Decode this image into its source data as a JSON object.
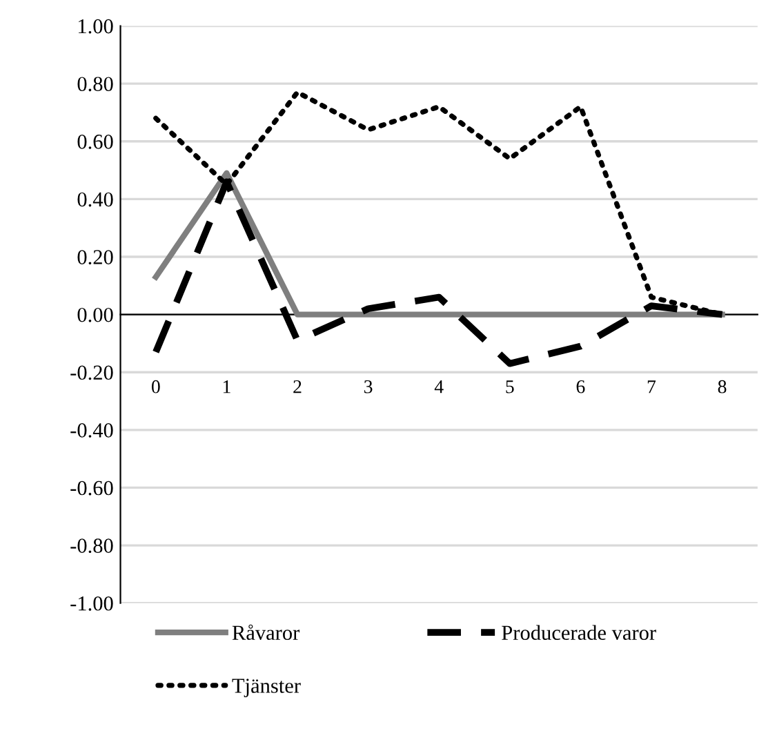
{
  "chart_data": {
    "type": "line",
    "categories": [
      "0",
      "1",
      "2",
      "3",
      "4",
      "5",
      "6",
      "7",
      "8"
    ],
    "series": [
      {
        "name": "Råvaror",
        "color": "#7f7f7f",
        "line_style": "solid",
        "values": [
          0.13,
          0.49,
          0,
          0,
          0,
          0,
          0,
          0,
          0
        ]
      },
      {
        "name": "Producerade varor",
        "color": "#000000",
        "line_style": "dashed",
        "values": [
          -0.13,
          0.46,
          -0.09,
          0.02,
          0.06,
          -0.17,
          -0.11,
          0.03,
          0
        ]
      },
      {
        "name": "Tjänster",
        "color": "#000000",
        "line_style": "dotted",
        "values": [
          0.68,
          0.45,
          0.77,
          0.64,
          0.72,
          0.54,
          0.72,
          0.06,
          0
        ]
      }
    ],
    "ylim": [
      -1,
      1
    ],
    "yticks": [
      {
        "value": -1,
        "label": "-1.00"
      },
      {
        "value": -0.8,
        "label": "-0.80"
      },
      {
        "value": -0.6,
        "label": "-0.60"
      },
      {
        "value": -0.4,
        "label": "-0.40"
      },
      {
        "value": -0.2,
        "label": "-0.20"
      },
      {
        "value": 0,
        "label": "0.00"
      },
      {
        "value": 0.2,
        "label": "0.20"
      },
      {
        "value": 0.4,
        "label": "0.40"
      },
      {
        "value": 0.6,
        "label": "0.60"
      },
      {
        "value": 0.8,
        "label": "0.80"
      },
      {
        "value": 1,
        "label": "1.00"
      }
    ],
    "grid": "y",
    "legend": "bottom",
    "marker": "none"
  }
}
